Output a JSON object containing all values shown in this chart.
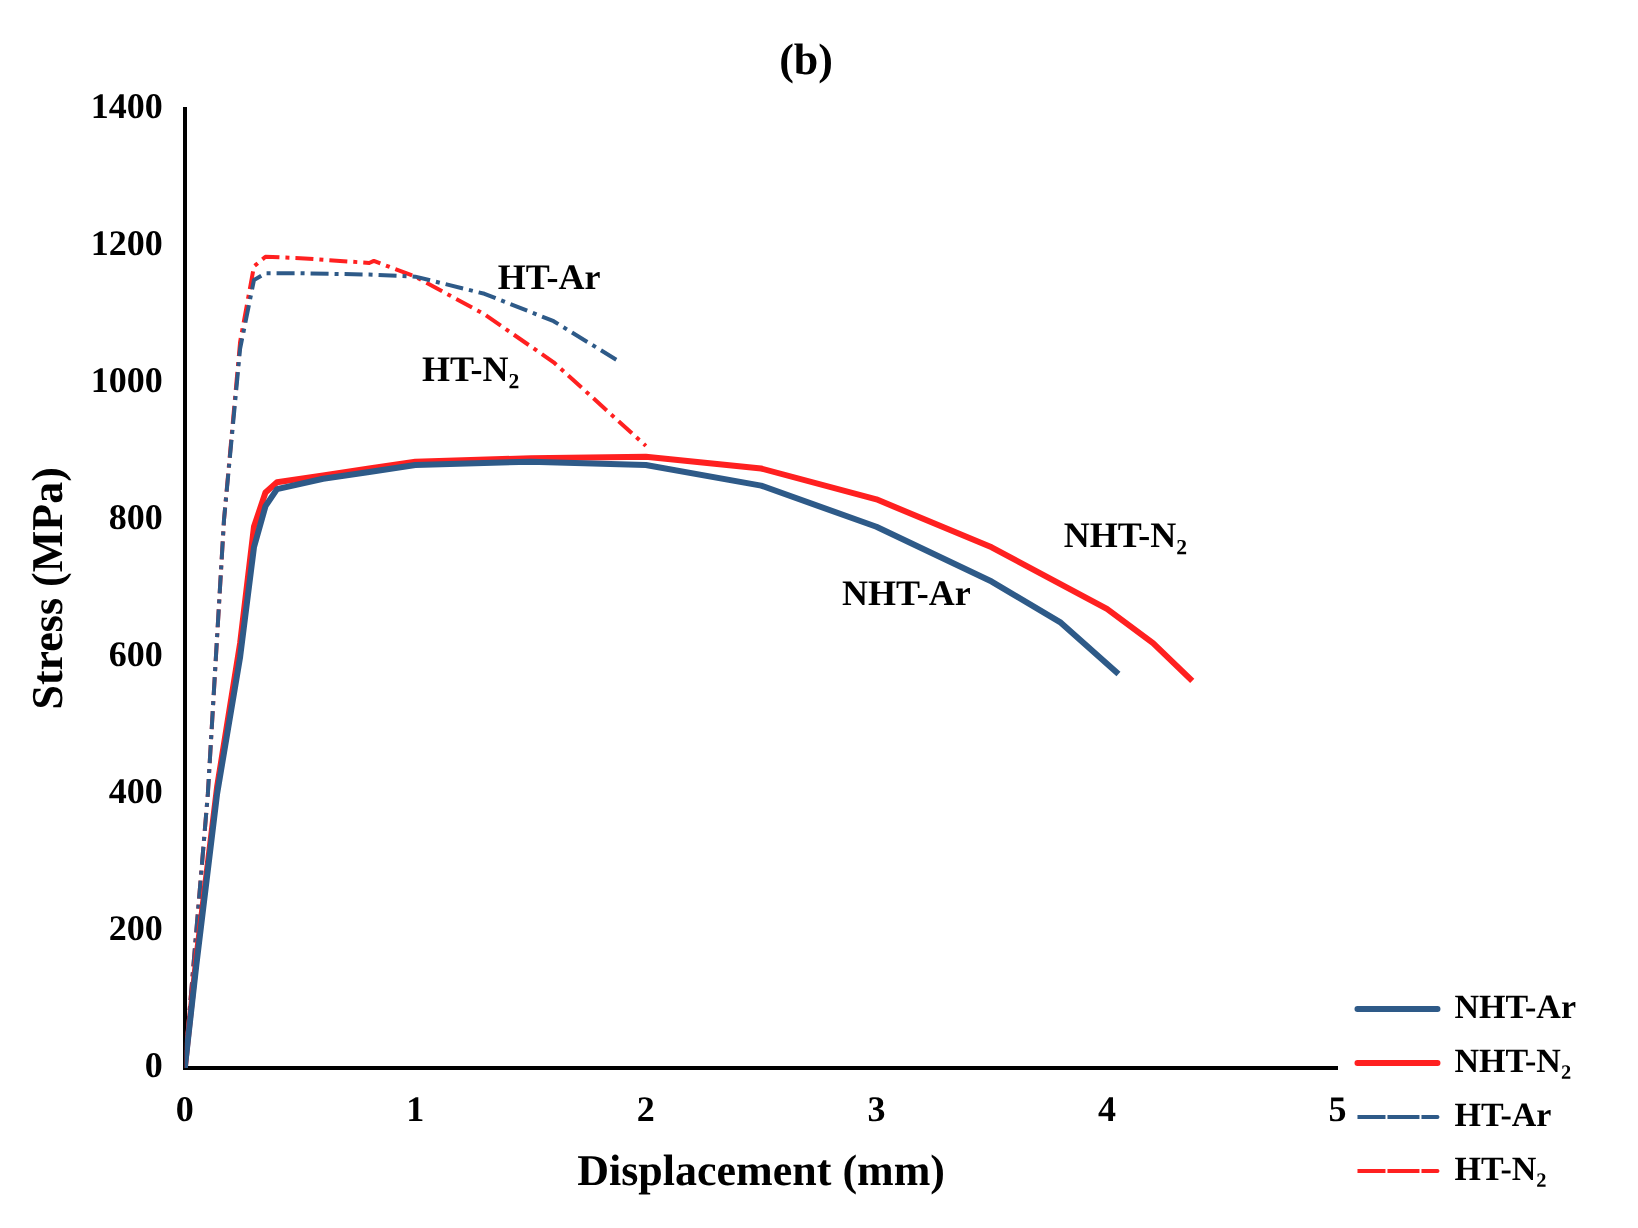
{
  "chart_data": {
    "type": "line",
    "title": "(b)",
    "xlabel": "Displacement (mm)",
    "ylabel": "Stress (MPa)",
    "xlim": [
      0,
      5
    ],
    "xticks": [
      0,
      1,
      2,
      3,
      4,
      5
    ],
    "ylim": [
      0,
      1400
    ],
    "yticks": [
      0,
      200,
      400,
      600,
      800,
      1000,
      1200,
      1400
    ],
    "grid": false,
    "legend": "bottom right",
    "marker": "none",
    "series": [
      {
        "name": "NHT-Ar",
        "color": "#2e5a88",
        "line_style": "solid",
        "x": [
          0,
          0.05,
          0.14,
          0.24,
          0.3,
          0.35,
          0.4,
          0.6,
          0.8,
          1,
          1.5,
          2,
          2.5,
          3,
          3.5,
          3.8,
          4.05
        ],
        "values": [
          0,
          150,
          400,
          600,
          760,
          820,
          845,
          860,
          870,
          880,
          885,
          880,
          850,
          790,
          710,
          650,
          575
        ]
      },
      {
        "name": "NHT-N₂",
        "color": "#ff2020",
        "line_style": "solid",
        "x": [
          0,
          0.05,
          0.14,
          0.24,
          0.3,
          0.35,
          0.4,
          0.6,
          0.8,
          1,
          1.5,
          2,
          2.5,
          3,
          3.5,
          4,
          4.2,
          4.37
        ],
        "values": [
          0,
          160,
          410,
          620,
          790,
          840,
          855,
          865,
          875,
          885,
          890,
          892,
          875,
          830,
          760,
          670,
          620,
          565
        ]
      },
      {
        "name": "HT-Ar",
        "color": "#2e5a88",
        "line_style": "dashed",
        "x": [
          0,
          0.05,
          0.1,
          0.17,
          0.24,
          0.3,
          0.35,
          0.5,
          0.8,
          1,
          1.3,
          1.6,
          1.88
        ],
        "values": [
          0,
          200,
          400,
          800,
          1050,
          1150,
          1160,
          1160,
          1158,
          1155,
          1130,
          1090,
          1032
        ]
      },
      {
        "name": "HT-N₂",
        "color": "#ff2020",
        "line_style": "dashed",
        "x": [
          0,
          0.05,
          0.1,
          0.17,
          0.24,
          0.3,
          0.35,
          0.5,
          0.8,
          0.82,
          1,
          1.3,
          1.6,
          2
        ],
        "values": [
          0,
          200,
          400,
          800,
          1060,
          1170,
          1184,
          1182,
          1175,
          1178,
          1155,
          1100,
          1030,
          908
        ]
      }
    ],
    "annotations": [
      "HT-Ar",
      "HT-N₂",
      "NHT-Ar",
      "NHT-N₂"
    ]
  }
}
